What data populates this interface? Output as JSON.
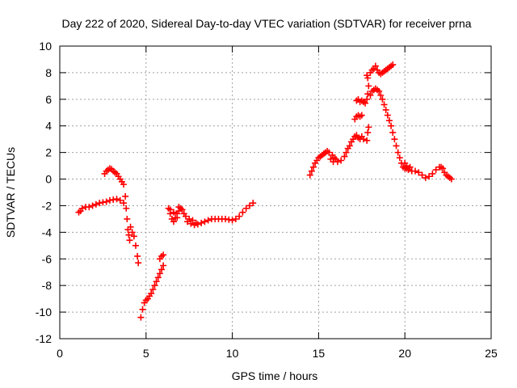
{
  "chart_data": {
    "type": "scatter",
    "title": "Day 222 of 2020, Sidereal Day-to-day VTEC variation (SDTVAR) for receiver prna",
    "xlabel": "GPS time / hours",
    "ylabel": "SDTVAR / TECUs",
    "xlim": [
      0,
      25
    ],
    "ylim": [
      -12,
      10
    ],
    "x_ticks": [
      0,
      5,
      10,
      15,
      20,
      25
    ],
    "y_ticks": [
      -12,
      -10,
      -8,
      -6,
      -4,
      -2,
      0,
      2,
      4,
      6,
      8,
      10
    ],
    "x_tick_labels": [
      "0",
      "5",
      "10",
      "15",
      "20",
      "25"
    ],
    "y_tick_labels": [
      "-12",
      "-10",
      "-8",
      "-6",
      "-4",
      "-2",
      "0",
      "2",
      "4",
      "6",
      "8",
      "10"
    ],
    "grid": true,
    "legend": "none",
    "marker": "plus",
    "color": "#ff0000",
    "series": [
      {
        "points": [
          [
            1.1,
            -2.5
          ],
          [
            1.2,
            -2.4
          ],
          [
            1.3,
            -2.2
          ],
          [
            1.5,
            -2.1
          ],
          [
            1.7,
            -2.1
          ],
          [
            1.9,
            -2.0
          ],
          [
            2.1,
            -1.9
          ],
          [
            2.3,
            -1.8
          ],
          [
            2.5,
            -1.75
          ],
          [
            2.7,
            -1.7
          ],
          [
            2.9,
            -1.6
          ],
          [
            3.1,
            -1.55
          ],
          [
            3.3,
            -1.5
          ],
          [
            3.5,
            -1.6
          ],
          [
            3.7,
            -1.8
          ],
          [
            3.8,
            -1.3
          ],
          [
            3.85,
            -2.2
          ],
          [
            3.9,
            -3.0
          ],
          [
            3.95,
            -3.8
          ],
          [
            4.0,
            -4.2
          ],
          [
            4.05,
            -4.6
          ],
          [
            4.1,
            -3.6
          ],
          [
            4.2,
            -4.0
          ],
          [
            4.3,
            -4.3
          ],
          [
            4.4,
            -5.0
          ],
          [
            4.5,
            -5.8
          ],
          [
            4.55,
            -6.3
          ]
        ]
      },
      {
        "points": [
          [
            2.6,
            0.4
          ],
          [
            2.7,
            0.6
          ],
          [
            2.8,
            0.7
          ],
          [
            2.9,
            0.8
          ],
          [
            3.0,
            0.75
          ],
          [
            3.1,
            0.6
          ],
          [
            3.2,
            0.5
          ],
          [
            3.3,
            0.4
          ],
          [
            3.4,
            0.2
          ],
          [
            3.5,
            0.0
          ],
          [
            3.6,
            -0.2
          ],
          [
            3.7,
            -0.4
          ]
        ]
      },
      {
        "points": [
          [
            4.7,
            -10.4
          ],
          [
            4.8,
            -9.8
          ],
          [
            4.9,
            -9.3
          ],
          [
            5.0,
            -9.1
          ],
          [
            5.1,
            -9.0
          ],
          [
            5.2,
            -8.8
          ],
          [
            5.3,
            -8.6
          ],
          [
            5.4,
            -8.3
          ],
          [
            5.5,
            -8.0
          ],
          [
            5.6,
            -7.7
          ],
          [
            5.7,
            -7.4
          ],
          [
            5.8,
            -7.1
          ],
          [
            5.9,
            -6.8
          ],
          [
            6.0,
            -6.5
          ],
          [
            5.8,
            -6.0
          ],
          [
            5.9,
            -5.8
          ],
          [
            6.0,
            -5.7
          ]
        ]
      },
      {
        "points": [
          [
            6.3,
            -2.2
          ],
          [
            6.4,
            -2.6
          ],
          [
            6.5,
            -3.0
          ],
          [
            6.6,
            -3.2
          ],
          [
            6.7,
            -2.9
          ],
          [
            6.8,
            -2.6
          ],
          [
            6.9,
            -2.4
          ],
          [
            7.0,
            -2.2
          ],
          [
            7.1,
            -2.3
          ],
          [
            6.9,
            -2.1
          ],
          [
            7.2,
            -2.6
          ],
          [
            7.3,
            -2.8
          ],
          [
            7.5,
            -3.0
          ],
          [
            7.7,
            -3.1
          ],
          [
            7.9,
            -3.3
          ],
          [
            7.4,
            -3.2
          ],
          [
            7.6,
            -3.35
          ],
          [
            7.8,
            -3.45
          ],
          [
            8.0,
            -3.4
          ],
          [
            8.2,
            -3.3
          ],
          [
            8.4,
            -3.2
          ],
          [
            8.6,
            -3.1
          ],
          [
            8.8,
            -3.0
          ],
          [
            9.0,
            -3.0
          ],
          [
            9.2,
            -3.0
          ],
          [
            9.4,
            -3.0
          ],
          [
            9.6,
            -3.0
          ],
          [
            9.8,
            -3.05
          ],
          [
            10.0,
            -3.1
          ],
          [
            10.2,
            -3.0
          ],
          [
            10.4,
            -2.8
          ],
          [
            10.6,
            -2.5
          ],
          [
            10.8,
            -2.2
          ],
          [
            11.0,
            -2.0
          ],
          [
            11.2,
            -1.8
          ],
          [
            6.4,
            -2.3
          ],
          [
            6.6,
            -2.5
          ],
          [
            6.8,
            -2.9
          ]
        ]
      },
      {
        "points": [
          [
            14.5,
            0.3
          ],
          [
            14.6,
            0.6
          ],
          [
            14.7,
            0.9
          ],
          [
            14.8,
            1.2
          ],
          [
            14.9,
            1.4
          ],
          [
            15.0,
            1.6
          ],
          [
            15.1,
            1.7
          ],
          [
            15.2,
            1.8
          ],
          [
            15.3,
            1.9
          ],
          [
            15.4,
            2.0
          ],
          [
            15.5,
            2.1
          ],
          [
            15.6,
            2.0
          ],
          [
            15.8,
            1.8
          ],
          [
            15.9,
            1.6
          ],
          [
            16.0,
            1.5
          ],
          [
            15.7,
            1.5
          ],
          [
            15.85,
            1.3
          ],
          [
            16.1,
            1.3
          ],
          [
            16.3,
            1.4
          ],
          [
            16.5,
            1.7
          ],
          [
            16.6,
            2.0
          ],
          [
            16.7,
            2.3
          ],
          [
            16.8,
            2.5
          ],
          [
            16.9,
            2.8
          ],
          [
            17.0,
            3.0
          ],
          [
            17.1,
            3.2
          ],
          [
            17.2,
            3.3
          ],
          [
            17.3,
            3.1
          ],
          [
            17.4,
            3.0
          ],
          [
            17.5,
            3.2
          ],
          [
            17.6,
            3.0
          ],
          [
            17.1,
            4.5
          ],
          [
            17.2,
            4.7
          ],
          [
            17.3,
            4.8
          ],
          [
            17.4,
            4.7
          ],
          [
            17.5,
            4.8
          ],
          [
            17.2,
            5.9
          ],
          [
            17.3,
            6.0
          ],
          [
            17.4,
            5.8
          ],
          [
            17.5,
            5.9
          ],
          [
            17.6,
            5.8
          ],
          [
            17.7,
            5.7
          ],
          [
            17.8,
            2.9
          ],
          [
            17.85,
            3.5
          ],
          [
            17.9,
            3.9
          ],
          [
            17.8,
            6.0
          ],
          [
            17.85,
            6.4
          ],
          [
            17.9,
            7.0
          ],
          [
            17.8,
            7.8
          ],
          [
            17.85,
            7.6
          ],
          [
            18.0,
            8.0
          ],
          [
            18.1,
            8.2
          ],
          [
            18.2,
            8.3
          ],
          [
            18.3,
            8.5
          ],
          [
            18.4,
            8.2
          ],
          [
            18.5,
            8.0
          ],
          [
            18.6,
            7.9
          ],
          [
            18.7,
            8.0
          ],
          [
            18.8,
            8.1
          ],
          [
            18.9,
            8.2
          ],
          [
            19.0,
            8.3
          ],
          [
            19.1,
            8.4
          ],
          [
            19.2,
            8.5
          ],
          [
            19.3,
            8.6
          ],
          [
            18.0,
            6.3
          ],
          [
            18.1,
            6.6
          ],
          [
            18.2,
            6.7
          ],
          [
            18.3,
            6.8
          ],
          [
            18.4,
            6.7
          ],
          [
            18.5,
            6.6
          ],
          [
            18.6,
            6.3
          ],
          [
            18.7,
            6.0
          ],
          [
            18.8,
            5.6
          ],
          [
            18.9,
            5.2
          ],
          [
            19.0,
            4.8
          ],
          [
            19.1,
            4.4
          ],
          [
            19.2,
            4.0
          ],
          [
            19.3,
            3.5
          ],
          [
            19.4,
            3.0
          ],
          [
            19.5,
            2.5
          ],
          [
            19.6,
            2.0
          ],
          [
            19.7,
            1.6
          ],
          [
            19.8,
            1.2
          ],
          [
            19.9,
            0.9
          ],
          [
            20.0,
            0.8
          ],
          [
            20.1,
            0.8
          ],
          [
            20.2,
            0.7
          ],
          [
            20.4,
            0.6
          ],
          [
            20.6,
            0.6
          ],
          [
            20.8,
            0.5
          ],
          [
            21.0,
            0.3
          ],
          [
            21.2,
            0.1
          ],
          [
            21.4,
            0.2
          ],
          [
            21.6,
            0.4
          ],
          [
            21.8,
            0.7
          ],
          [
            22.0,
            0.9
          ],
          [
            22.1,
            0.9
          ],
          [
            22.2,
            0.8
          ],
          [
            22.3,
            0.5
          ],
          [
            22.4,
            0.3
          ],
          [
            22.5,
            0.2
          ],
          [
            22.6,
            0.1
          ],
          [
            22.7,
            0.0
          ],
          [
            20.0,
            1.2
          ],
          [
            20.1,
            1.0
          ],
          [
            20.3,
            0.9
          ]
        ]
      }
    ]
  }
}
